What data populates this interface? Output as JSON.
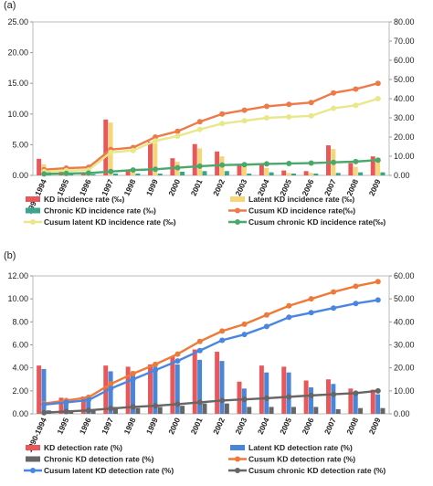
{
  "chart_data": [
    {
      "type": "bar",
      "panel_label": "(a)",
      "categories": [
        "1990-1994",
        "1995",
        "1996",
        "1997",
        "1998",
        "1999",
        "2000",
        "2001",
        "2002",
        "2003",
        "2004",
        "2005",
        "2006",
        "2007",
        "2008",
        "2009"
      ],
      "y_left": {
        "ylim": [
          0,
          25
        ],
        "ticks": [
          "0.00",
          "5.00",
          "10.00",
          "15.00",
          "20.00",
          "25.00"
        ]
      },
      "y_right": {
        "ylim": [
          0,
          80
        ],
        "ticks": [
          "0.00",
          "10.00",
          "20.00",
          "30.00",
          "40.00",
          "50.00",
          "60.00",
          "70.00",
          "80.00"
        ]
      },
      "bar_series": [
        {
          "name": "KD incidence rate (‰)",
          "color": "#e8575a",
          "axis": "left",
          "values": [
            2.7,
            0.6,
            0.4,
            9.1,
            0.8,
            5.5,
            2.8,
            5.1,
            3.9,
            1.8,
            1.8,
            0.8,
            0.7,
            4.9,
            2.0,
            3.1
          ]
        },
        {
          "name": "Latent KD incidence rate (‰)",
          "color": "#f5d77a",
          "axis": "left",
          "values": [
            1.8,
            0.4,
            0.3,
            8.6,
            0.5,
            5.2,
            2.2,
            4.4,
            3.1,
            1.4,
            1.2,
            0.4,
            0.4,
            4.3,
            1.4,
            2.6
          ]
        },
        {
          "name": "Chronic KD incidence rate (‰)",
          "color": "#3aa58e",
          "axis": "left",
          "values": [
            0.6,
            0.2,
            0.2,
            0.3,
            0.3,
            0.3,
            0.6,
            0.7,
            0.7,
            0.3,
            0.5,
            0.3,
            0.3,
            0.4,
            0.5,
            0.5
          ]
        }
      ],
      "line_series": [
        {
          "name": "Cusum KD incidence rate(‰)",
          "color": "#ee7a4a",
          "axis": "right",
          "values": [
            3.0,
            3.8,
            4.2,
            13.5,
            14.5,
            20.0,
            23.0,
            28.0,
            32.0,
            34.0,
            36.0,
            37.0,
            38.0,
            43.0,
            45.0,
            48.0
          ]
        },
        {
          "name": "Cusum latent KD incidence rate (‰)",
          "color": "#e8e88a",
          "axis": "right",
          "values": [
            2.0,
            2.5,
            2.8,
            12.0,
            13.0,
            18.0,
            20.5,
            24.0,
            27.0,
            28.5,
            30.0,
            30.5,
            31.0,
            35.0,
            36.5,
            40.0
          ]
        },
        {
          "name": "Cusum chronic KD incidence rate(‰)",
          "color": "#4aa86a",
          "axis": "right",
          "values": [
            0.8,
            1.0,
            1.2,
            2.0,
            2.8,
            3.2,
            4.0,
            4.8,
            5.4,
            5.6,
            6.0,
            6.2,
            6.4,
            6.8,
            7.2,
            8.0
          ]
        }
      ],
      "legend": "bottom"
    },
    {
      "type": "bar",
      "panel_label": "(b)",
      "categories": [
        "1990-1994",
        "1995",
        "1996",
        "1997",
        "1998",
        "1999",
        "2000",
        "2001",
        "2002",
        "2003",
        "2004",
        "2005",
        "2006",
        "2007",
        "2008",
        "2009"
      ],
      "y_left": {
        "ylim": [
          0,
          12
        ],
        "ticks": [
          "0.00",
          "2.00",
          "4.00",
          "6.00",
          "8.00",
          "10.00",
          "12.00"
        ]
      },
      "y_right": {
        "ylim": [
          0,
          60
        ],
        "ticks": [
          "0.00",
          "10.00",
          "20.00",
          "30.00",
          "40.00",
          "50.00",
          "60.00"
        ]
      },
      "bar_series": [
        {
          "name": "KD detection rate (%)",
          "color": "#e8575a",
          "axis": "left",
          "values": [
            4.2,
            1.4,
            1.5,
            4.2,
            4.1,
            4.3,
            5.0,
            5.6,
            5.4,
            2.8,
            4.2,
            4.1,
            2.9,
            3.0,
            2.2,
            2.1
          ]
        },
        {
          "name": "Latent KD detection rate (%)",
          "color": "#4a86d8",
          "axis": "left",
          "values": [
            3.9,
            1.2,
            1.3,
            3.7,
            3.7,
            4.1,
            4.3,
            4.7,
            4.6,
            2.2,
            3.6,
            3.6,
            2.3,
            2.6,
            1.8,
            1.7
          ]
        },
        {
          "name": "Chronic KD detection rate (%)",
          "color": "#666666",
          "axis": "left",
          "values": [
            0.3,
            0.3,
            0.3,
            0.6,
            0.5,
            0.6,
            0.7,
            0.9,
            0.9,
            0.6,
            0.6,
            0.6,
            0.6,
            0.4,
            0.5,
            0.5
          ]
        }
      ],
      "line_series": [
        {
          "name": "Cusum KD detection rate (%)",
          "color": "#ee7a3a",
          "axis": "right",
          "values": [
            4.5,
            5.8,
            7.2,
            13.0,
            17.5,
            21.5,
            26.0,
            31.5,
            36.0,
            39.0,
            43.0,
            47.0,
            50.0,
            53.0,
            55.5,
            57.5
          ]
        },
        {
          "name": "Cusum latent KD detection rate (%)",
          "color": "#4a86e0",
          "axis": "right",
          "values": [
            4.0,
            5.0,
            6.0,
            11.0,
            15.0,
            19.0,
            23.0,
            27.5,
            32.0,
            34.5,
            38.0,
            42.0,
            44.0,
            46.0,
            48.0,
            49.5
          ]
        },
        {
          "name": "Cusum chronic KD detection rate (%)",
          "color": "#666666",
          "axis": "right",
          "values": [
            0.5,
            1.0,
            1.5,
            2.3,
            3.0,
            3.5,
            4.2,
            5.0,
            5.8,
            6.3,
            6.8,
            7.4,
            8.0,
            8.5,
            9.0,
            10.0
          ]
        }
      ],
      "legend": "bottom"
    }
  ]
}
